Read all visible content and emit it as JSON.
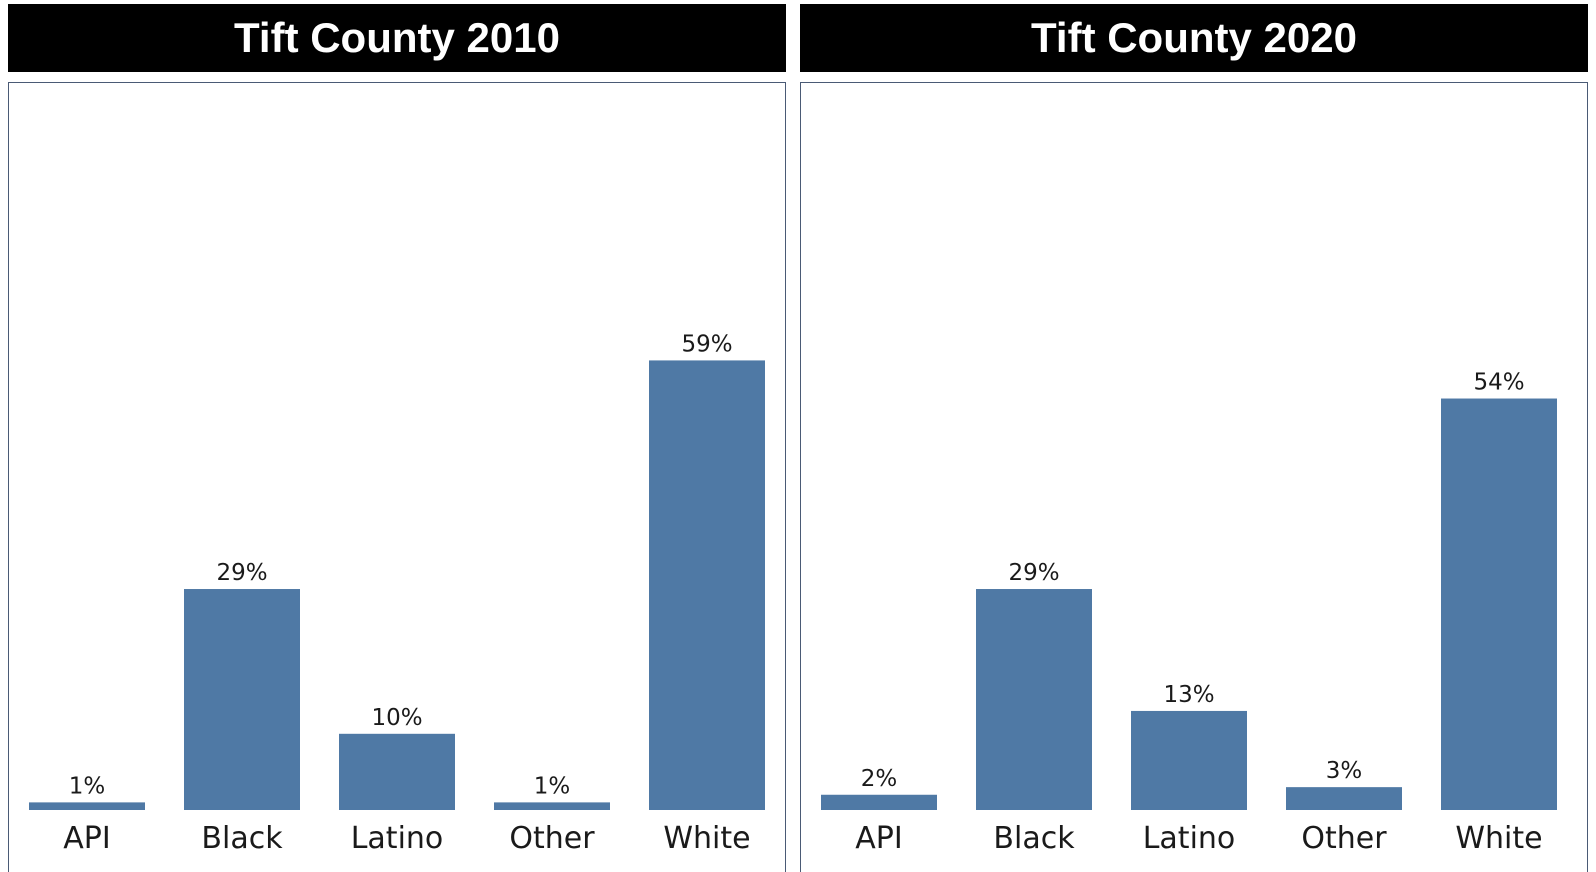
{
  "colors": {
    "bar": "#4f79a5",
    "header_bg": "#000000",
    "header_text": "#ffffff"
  },
  "chart_data": [
    {
      "type": "bar",
      "title": "Tift County 2010",
      "categories": [
        "API",
        "Black",
        "Latino",
        "Other",
        "White"
      ],
      "values": [
        1,
        29,
        10,
        1,
        59
      ],
      "labels": [
        "1%",
        "29%",
        "10%",
        "1%",
        "59%"
      ],
      "ylim": [
        0,
        100
      ],
      "grid": false
    },
    {
      "type": "bar",
      "title": "Tift County 2020",
      "categories": [
        "API",
        "Black",
        "Latino",
        "Other",
        "White"
      ],
      "values": [
        2,
        29,
        13,
        3,
        54
      ],
      "labels": [
        "2%",
        "29%",
        "13%",
        "3%",
        "54%"
      ],
      "ylim": [
        0,
        100
      ],
      "grid": false
    }
  ]
}
